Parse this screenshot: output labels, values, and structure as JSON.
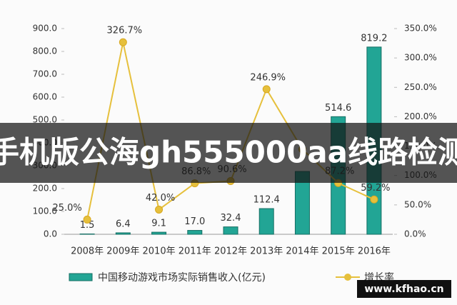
{
  "chart_data": {
    "type": "bar-line",
    "categories": [
      "2008年",
      "2009年",
      "2010年",
      "2011年",
      "2012年",
      "2013年",
      "2014年",
      "2015年",
      "2016年"
    ],
    "series": [
      {
        "name": "中国移动游戏市场实际销售收入(亿元)",
        "type": "bar",
        "color": "#22a595",
        "values": [
          1.5,
          6.4,
          9.1,
          17.0,
          32.4,
          112.4,
          274.9,
          514.6,
          819.2
        ],
        "value_labels": [
          "1.5",
          "6.4",
          "9.1",
          "17.0",
          "32.4",
          "112.4",
          null,
          "514.6",
          "819.2"
        ]
      },
      {
        "name": "增长率",
        "type": "line",
        "axis": "y2",
        "color": "#e6c03c",
        "values": [
          25.0,
          326.7,
          42.0,
          86.8,
          90.6,
          246.9,
          144.6,
          87.2,
          59.2
        ],
        "value_labels": [
          "25.0%",
          "326.7%",
          "42.0%",
          "86.8%",
          "90.6%",
          "246.9%",
          null,
          "87.2%",
          "59.2%"
        ]
      }
    ],
    "ylim": [
      0,
      900
    ],
    "yticks": [
      {
        "value": 0,
        "label": "0.0"
      },
      {
        "value": 100,
        "label": "100.0"
      },
      {
        "value": 200,
        "label": "200.0"
      },
      {
        "value": 300,
        "label": "300.0"
      },
      {
        "value": 400,
        "label": "400.0"
      },
      {
        "value": 500,
        "label": "500.0"
      },
      {
        "value": 600,
        "label": "600.0"
      },
      {
        "value": 700,
        "label": "700.0"
      },
      {
        "value": 800,
        "label": "800.0"
      },
      {
        "value": 900,
        "label": "900.0"
      }
    ],
    "y2lim": [
      0,
      350
    ],
    "y2ticks": [
      {
        "value": 0,
        "label": "0.0%"
      },
      {
        "value": 50,
        "label": "50.0%"
      },
      {
        "value": 100,
        "label": "100.0%"
      },
      {
        "value": 150,
        "label": "150.0%"
      },
      {
        "value": 200,
        "label": "200.0%"
      },
      {
        "value": 250,
        "label": "250.0%"
      },
      {
        "value": 300,
        "label": "300.0%"
      },
      {
        "value": 350,
        "label": "350.0%"
      }
    ],
    "grid": false
  },
  "overlay": {
    "banner": "手机版公海gh555000aa线路检测",
    "watermark": "www.kfhao.cn"
  }
}
